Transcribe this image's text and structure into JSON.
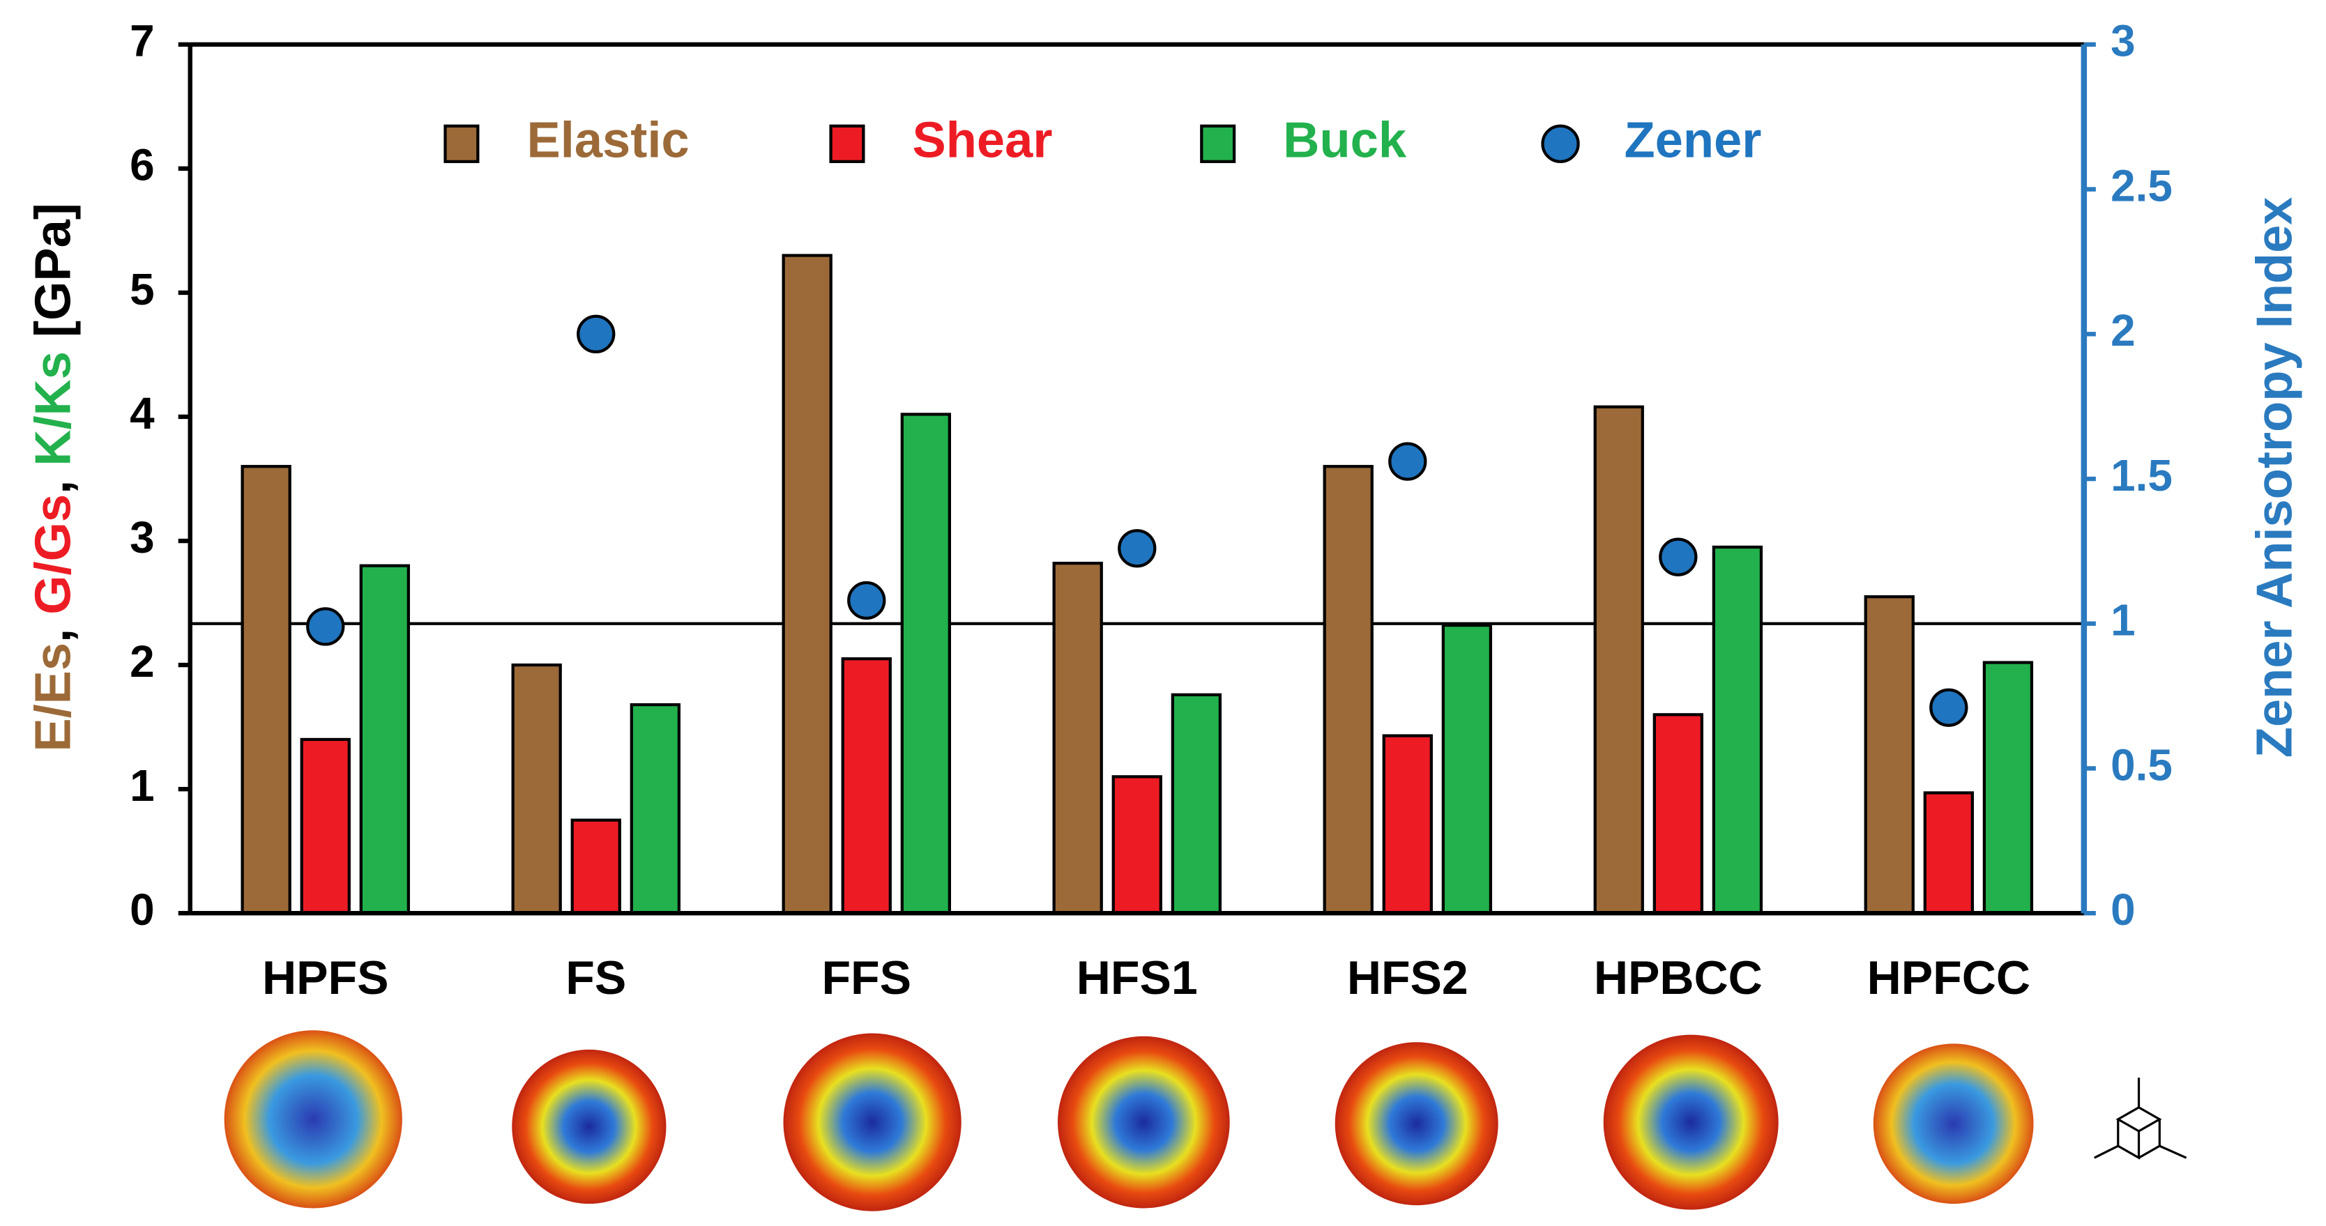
{
  "chart_data": {
    "type": "bar",
    "categories": [
      "HPFS",
      "FS",
      "FFS",
      "HFS1",
      "HFS2",
      "HPBCC",
      "HPFCC"
    ],
    "series": [
      {
        "name": "Elastic",
        "color": "#9c6a38",
        "values": [
          3.6,
          2.0,
          5.3,
          2.82,
          3.6,
          4.08,
          2.55
        ]
      },
      {
        "name": "Shear",
        "color": "#ed1c24",
        "values": [
          1.4,
          0.75,
          2.05,
          1.1,
          1.43,
          1.6,
          0.97
        ]
      },
      {
        "name": "Buck",
        "color": "#22b14c",
        "values": [
          2.8,
          1.68,
          4.02,
          1.76,
          2.32,
          2.95,
          2.02
        ]
      },
      {
        "name": "Zener",
        "color": "#1f75bf",
        "type": "scatter",
        "axis": "y2",
        "values": [
          0.99,
          2.0,
          1.08,
          1.26,
          1.56,
          1.23,
          0.71
        ]
      }
    ],
    "ylabel_parts": [
      {
        "text": "E/Es",
        "color": "#9c6a38"
      },
      {
        "text": ", ",
        "color": "#000000"
      },
      {
        "text": "G/Gs",
        "color": "#ed1c24"
      },
      {
        "text": ", ",
        "color": "#000000"
      },
      {
        "text": "K/Ks",
        "color": "#22b14c"
      },
      {
        "text": " [GPa]",
        "color": "#000000"
      }
    ],
    "y2label": "Zener Anisotropy Index",
    "y2color": "#2a7abf",
    "ylim": [
      0,
      7
    ],
    "yticks": [
      0,
      1,
      2,
      3,
      4,
      5,
      6,
      7
    ],
    "y2lim": [
      0,
      3
    ],
    "y2ticks": [
      0,
      0.5,
      1,
      1.5,
      2,
      2.5,
      3
    ],
    "reference_line_y2": 1,
    "legend": "top"
  }
}
